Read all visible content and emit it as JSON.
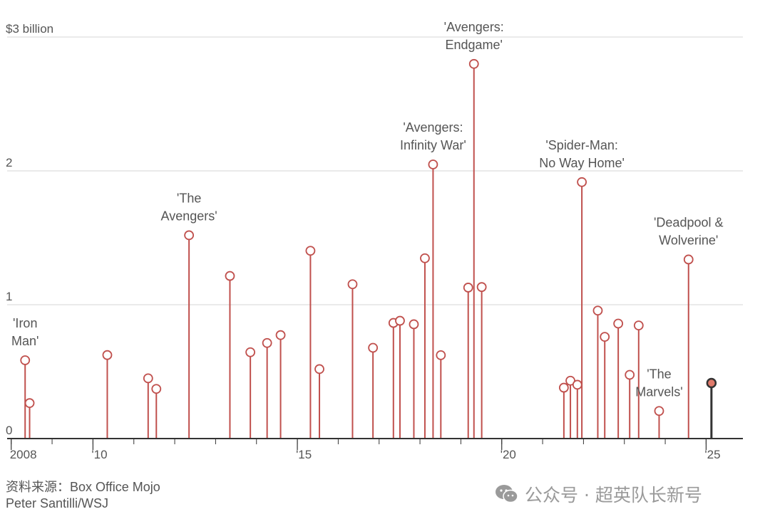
{
  "chart_data": {
    "type": "lollipop",
    "title": "",
    "xlabel": "",
    "ylabel": "",
    "ylim": [
      0,
      3
    ],
    "xlim": [
      2007.9,
      2025.9
    ],
    "y_ticks": [
      {
        "value": 3,
        "label": "$3 billion"
      },
      {
        "value": 2,
        "label": "2"
      },
      {
        "value": 1,
        "label": "1"
      },
      {
        "value": 0,
        "label": "0"
      }
    ],
    "x_ticks": [
      {
        "value": 2008,
        "label": "2008"
      },
      {
        "value": 2010,
        "label": "'10"
      },
      {
        "value": 2015,
        "label": "'15"
      },
      {
        "value": 2020,
        "label": "'20"
      },
      {
        "value": 2025,
        "label": "'25"
      }
    ],
    "grid": "horizontal",
    "colors": {
      "stem": "#c0504d",
      "marker_fill": "#ffffff",
      "highlight": "#333333",
      "highlight_fill": "#e07a6b",
      "grid": "#e3e3e3",
      "axis": "#333333"
    },
    "points": [
      {
        "x": 2008.34,
        "y": 0.585
      },
      {
        "x": 2008.45,
        "y": 0.265
      },
      {
        "x": 2010.35,
        "y": 0.624
      },
      {
        "x": 2011.35,
        "y": 0.45
      },
      {
        "x": 2011.55,
        "y": 0.371
      },
      {
        "x": 2012.35,
        "y": 1.519
      },
      {
        "x": 2013.35,
        "y": 1.215
      },
      {
        "x": 2013.85,
        "y": 0.645
      },
      {
        "x": 2014.26,
        "y": 0.714
      },
      {
        "x": 2014.59,
        "y": 0.773
      },
      {
        "x": 2015.32,
        "y": 1.403
      },
      {
        "x": 2015.54,
        "y": 0.519
      },
      {
        "x": 2016.35,
        "y": 1.153
      },
      {
        "x": 2016.85,
        "y": 0.678
      },
      {
        "x": 2017.35,
        "y": 0.864
      },
      {
        "x": 2017.51,
        "y": 0.88
      },
      {
        "x": 2017.85,
        "y": 0.854
      },
      {
        "x": 2018.12,
        "y": 1.347
      },
      {
        "x": 2018.32,
        "y": 2.048
      },
      {
        "x": 2018.51,
        "y": 0.623
      },
      {
        "x": 2019.18,
        "y": 1.128
      },
      {
        "x": 2019.32,
        "y": 2.799
      },
      {
        "x": 2019.51,
        "y": 1.132
      },
      {
        "x": 2021.52,
        "y": 0.38
      },
      {
        "x": 2021.68,
        "y": 0.432
      },
      {
        "x": 2021.85,
        "y": 0.402
      },
      {
        "x": 2021.96,
        "y": 1.916
      },
      {
        "x": 2022.35,
        "y": 0.956
      },
      {
        "x": 2022.52,
        "y": 0.76
      },
      {
        "x": 2022.85,
        "y": 0.859
      },
      {
        "x": 2023.13,
        "y": 0.476
      },
      {
        "x": 2023.35,
        "y": 0.845
      },
      {
        "x": 2023.85,
        "y": 0.206
      },
      {
        "x": 2024.57,
        "y": 1.338
      },
      {
        "x": 2025.13,
        "y": 0.415,
        "highlight": true
      }
    ],
    "annotations": [
      {
        "lines": [
          "'Iron",
          "Man'"
        ],
        "x": 2008.34,
        "y": 0.585
      },
      {
        "lines": [
          "'The",
          "Avengers'"
        ],
        "x": 2012.35,
        "y": 1.519
      },
      {
        "lines": [
          "'Avengers:",
          "Infinity War'"
        ],
        "x": 2018.32,
        "y": 2.048
      },
      {
        "lines": [
          "'Avengers:",
          "Endgame'"
        ],
        "x": 2019.32,
        "y": 2.799
      },
      {
        "lines": [
          "'Spider-Man:",
          "No Way Home'"
        ],
        "x": 2021.96,
        "y": 1.916
      },
      {
        "lines": [
          "'The",
          "Marvels'"
        ],
        "x": 2023.85,
        "y": 0.206
      },
      {
        "lines": [
          "'Deadpool &",
          "Wolverine'"
        ],
        "x": 2024.57,
        "y": 1.338
      }
    ]
  },
  "footer": {
    "source": "资料来源：Box Office Mojo",
    "credit": "Peter Santilli/WSJ"
  },
  "watermark": {
    "icon": "wechat-icon",
    "text": "公众号 · 超英队长新号"
  }
}
